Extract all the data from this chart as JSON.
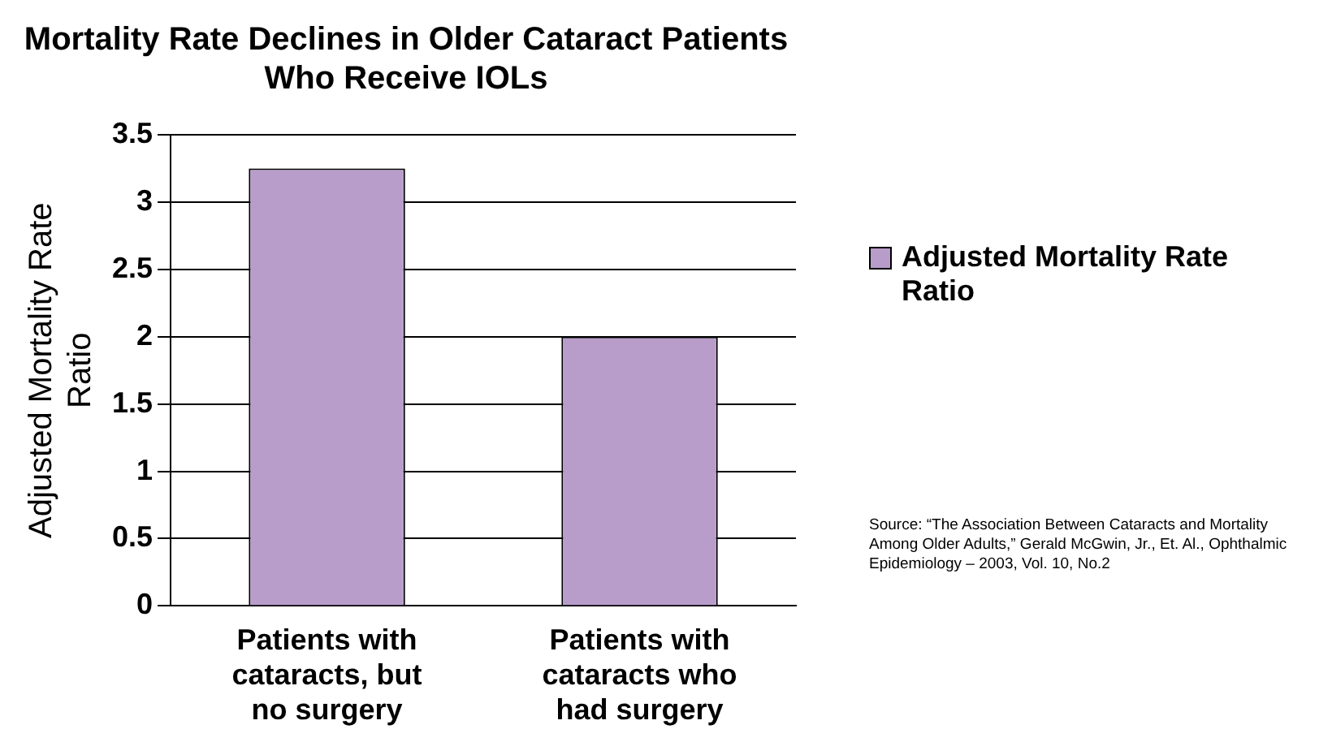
{
  "chart_data": {
    "type": "bar",
    "title": "Mortality Rate Declines in Older Cataract Patients\nWho Receive IOLs",
    "ylabel": "Adjusted Mortality Rate Ratio",
    "categories": [
      "Patients with cataracts, but no surgery",
      "Patients with cataracts who had surgery"
    ],
    "series": [
      {
        "name": "Adjusted Mortality Rate Ratio",
        "color": "#b89cca",
        "values": [
          3.25,
          2.0
        ]
      }
    ],
    "ylim": [
      0,
      3.5
    ],
    "yticks": [
      0,
      0.5,
      1,
      1.5,
      2,
      2.5,
      3,
      3.5
    ],
    "grid": "y",
    "legend": "right",
    "annotations": [
      "Source: “The Association Between Cataracts and Mortality Among Older Adults,” Gerald McGwin, Jr., Et. Al., Ophthalmic Epidemiology – 2003, Vol. 10, No.2"
    ]
  }
}
